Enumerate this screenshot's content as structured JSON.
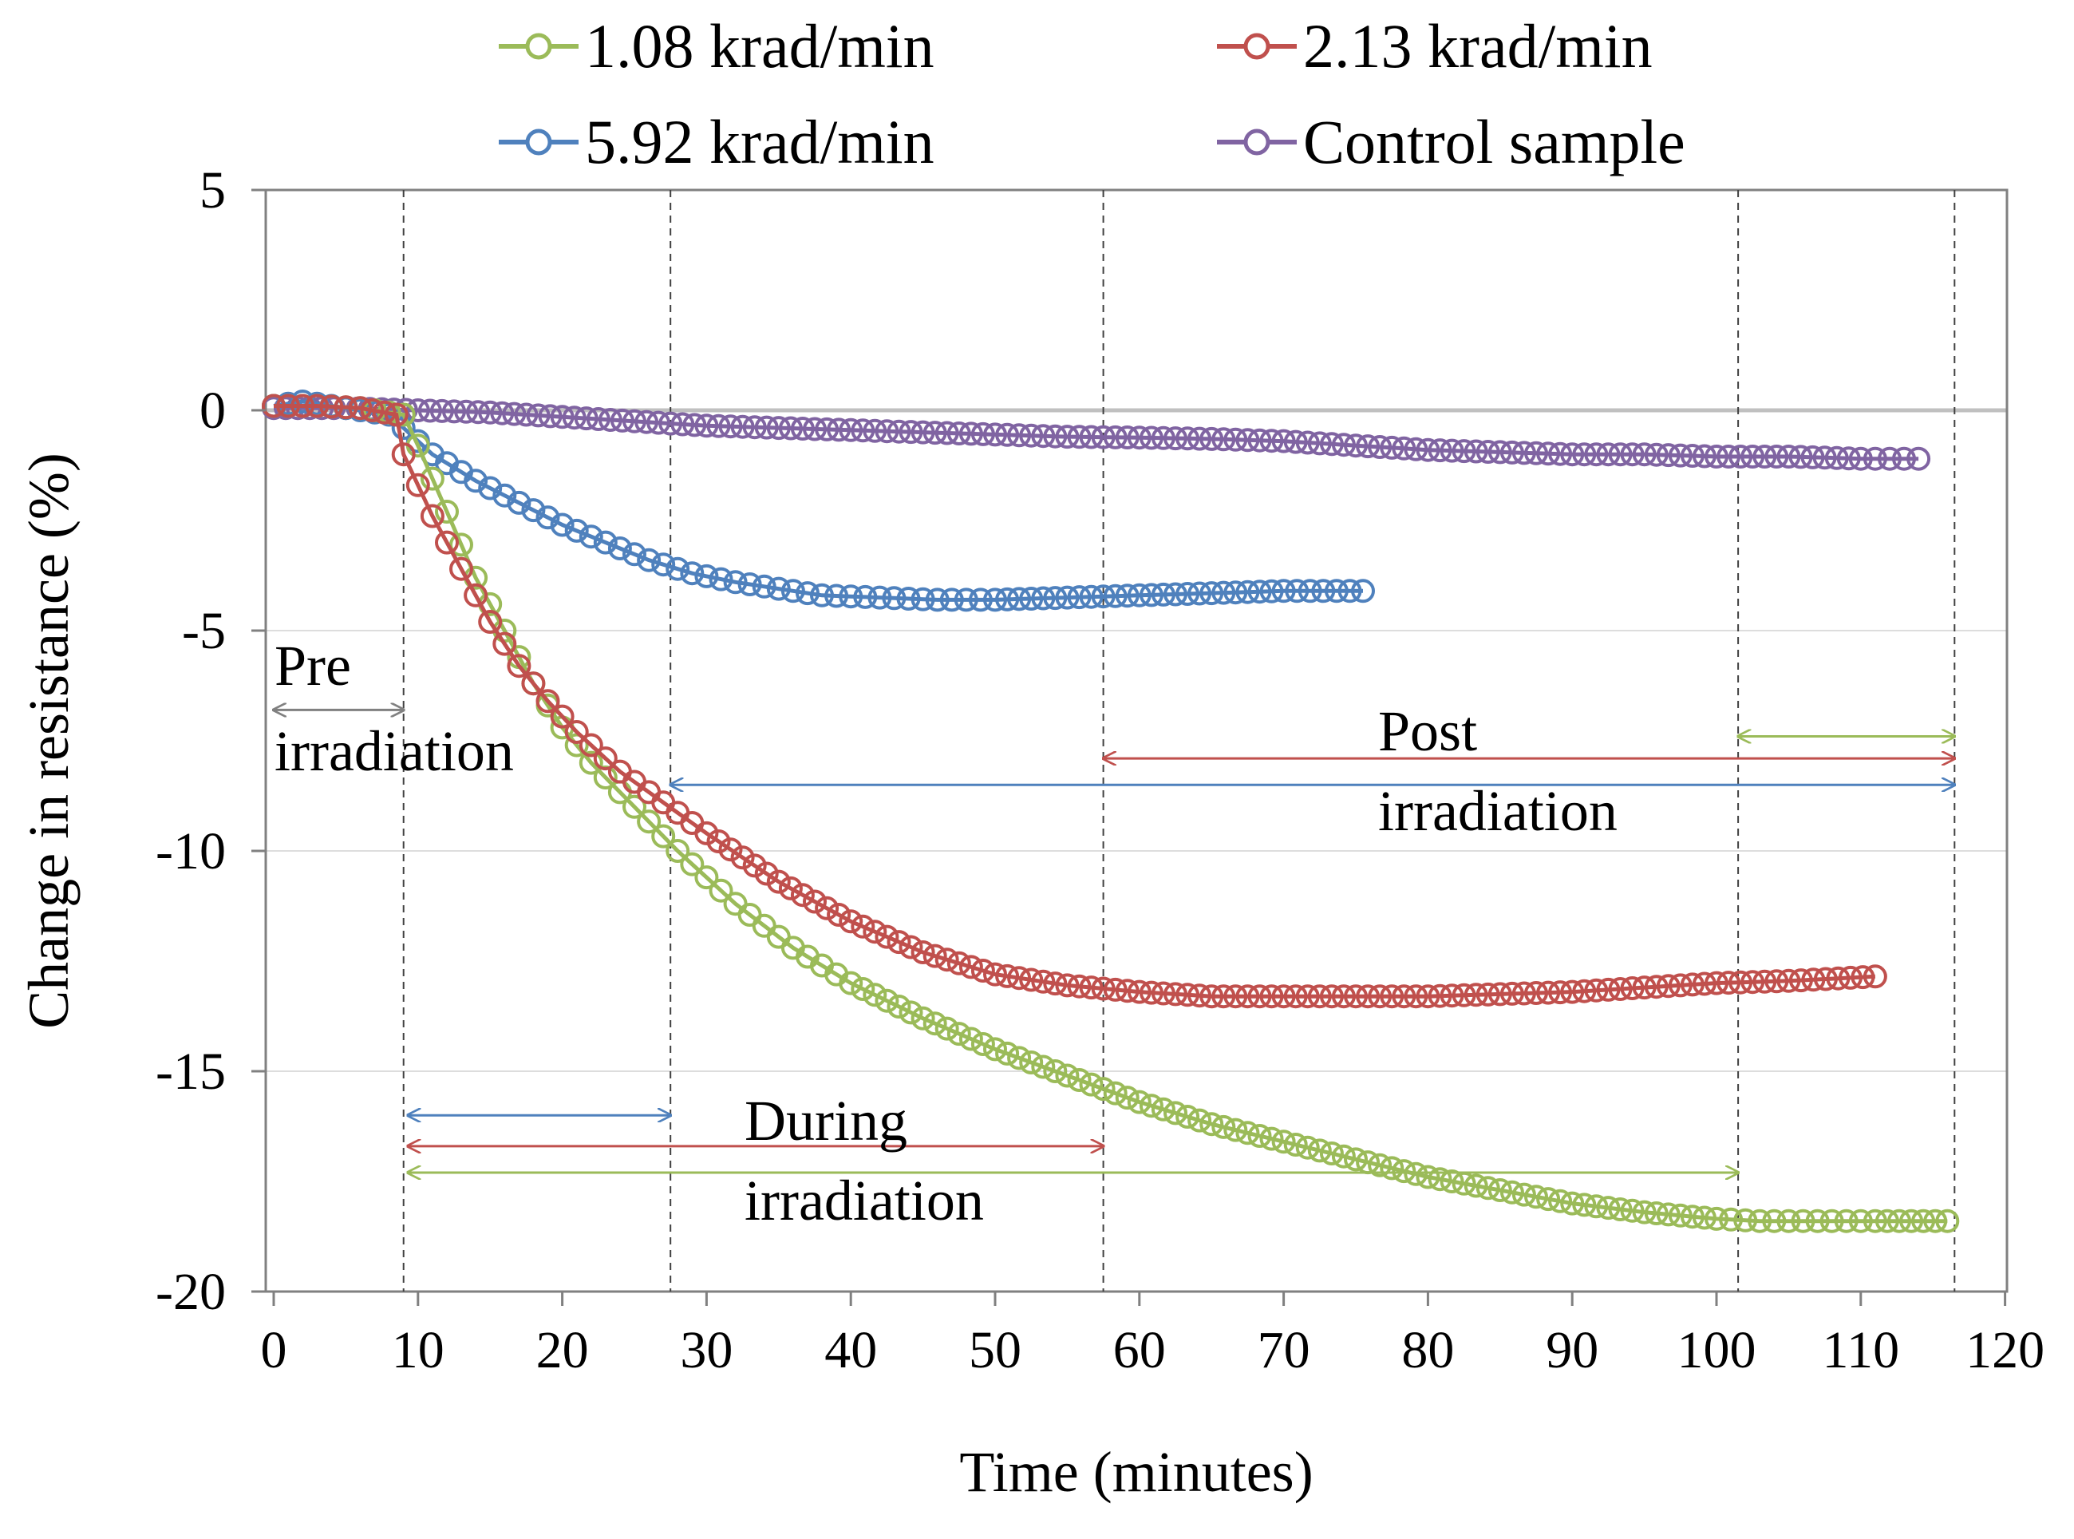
{
  "chart_data": {
    "type": "scatter",
    "xlabel": "Time (minutes)",
    "ylabel": "Change in resistance (%)",
    "xlim": [
      0,
      120
    ],
    "ylim": [
      -20,
      5
    ],
    "xticks": [
      0,
      10,
      20,
      30,
      40,
      50,
      60,
      70,
      80,
      90,
      100,
      110,
      120
    ],
    "yticks": [
      5,
      0,
      -5,
      -10,
      -15,
      -20
    ],
    "xtick_labels": [
      "0",
      "10",
      "20",
      "30",
      "40",
      "50",
      "60",
      "70",
      "80",
      "90",
      "100",
      "110",
      "120"
    ],
    "ytick_labels": [
      "5",
      "0",
      "-5",
      "-10",
      "-15",
      "-20"
    ],
    "grid": true,
    "legend_position": "top",
    "phase_lines_x": [
      9,
      27.5,
      57.5,
      101.5,
      116.5
    ],
    "series": [
      {
        "name": "1.08 krad/min",
        "color": "#9bbb59",
        "points": [
          [
            0,
            0.1
          ],
          [
            3,
            0.1
          ],
          [
            6,
            0.05
          ],
          [
            9,
            -0.1
          ],
          [
            10,
            -0.8
          ],
          [
            12,
            -2.3
          ],
          [
            14,
            -3.8
          ],
          [
            16,
            -5.0
          ],
          [
            18,
            -6.2
          ],
          [
            20,
            -7.2
          ],
          [
            22,
            -8.0
          ],
          [
            25,
            -9.0
          ],
          [
            28,
            -10.0
          ],
          [
            32,
            -11.2
          ],
          [
            36,
            -12.2
          ],
          [
            40,
            -13.0
          ],
          [
            45,
            -13.8
          ],
          [
            50,
            -14.5
          ],
          [
            55,
            -15.1
          ],
          [
            60,
            -15.7
          ],
          [
            65,
            -16.2
          ],
          [
            70,
            -16.6
          ],
          [
            75,
            -17.0
          ],
          [
            80,
            -17.4
          ],
          [
            85,
            -17.7
          ],
          [
            90,
            -18.0
          ],
          [
            95,
            -18.2
          ],
          [
            100,
            -18.35
          ],
          [
            103,
            -18.4
          ],
          [
            107,
            -18.4
          ],
          [
            111,
            -18.4
          ],
          [
            116,
            -18.4
          ]
        ]
      },
      {
        "name": "2.13 krad/min",
        "color": "#c0504d",
        "points": [
          [
            0,
            0.1
          ],
          [
            3,
            0.1
          ],
          [
            6,
            0.05
          ],
          [
            8.5,
            -0.1
          ],
          [
            9,
            -1.0
          ],
          [
            11,
            -2.4
          ],
          [
            13,
            -3.6
          ],
          [
            15,
            -4.8
          ],
          [
            17,
            -5.8
          ],
          [
            19,
            -6.6
          ],
          [
            21,
            -7.3
          ],
          [
            24,
            -8.2
          ],
          [
            27,
            -8.9
          ],
          [
            30,
            -9.6
          ],
          [
            35,
            -10.7
          ],
          [
            40,
            -11.6
          ],
          [
            45,
            -12.3
          ],
          [
            50,
            -12.8
          ],
          [
            55,
            -13.05
          ],
          [
            60,
            -13.2
          ],
          [
            65,
            -13.3
          ],
          [
            70,
            -13.3
          ],
          [
            75,
            -13.3
          ],
          [
            80,
            -13.3
          ],
          [
            85,
            -13.25
          ],
          [
            90,
            -13.2
          ],
          [
            95,
            -13.1
          ],
          [
            100,
            -13.0
          ],
          [
            105,
            -12.95
          ],
          [
            111,
            -12.85
          ]
        ]
      },
      {
        "name": "5.92 krad/min",
        "color": "#4f81bd",
        "points": [
          [
            0,
            0.1
          ],
          [
            2,
            0.2
          ],
          [
            5,
            0.05
          ],
          [
            8,
            -0.1
          ],
          [
            9,
            -0.4
          ],
          [
            11,
            -1.0
          ],
          [
            14,
            -1.6
          ],
          [
            17,
            -2.1
          ],
          [
            20,
            -2.6
          ],
          [
            23,
            -3.0
          ],
          [
            26,
            -3.4
          ],
          [
            29,
            -3.7
          ],
          [
            32,
            -3.9
          ],
          [
            35,
            -4.05
          ],
          [
            38,
            -4.2
          ],
          [
            42,
            -4.25
          ],
          [
            46,
            -4.3
          ],
          [
            50,
            -4.3
          ],
          [
            55,
            -4.25
          ],
          [
            60,
            -4.2
          ],
          [
            65,
            -4.15
          ],
          [
            70,
            -4.1
          ],
          [
            75.5,
            -4.1
          ]
        ]
      },
      {
        "name": "Control sample",
        "color": "#8064a2",
        "points": [
          [
            0,
            0.05
          ],
          [
            5,
            0.05
          ],
          [
            10,
            0.0
          ],
          [
            15,
            -0.05
          ],
          [
            20,
            -0.15
          ],
          [
            25,
            -0.25
          ],
          [
            30,
            -0.35
          ],
          [
            35,
            -0.4
          ],
          [
            40,
            -0.45
          ],
          [
            45,
            -0.5
          ],
          [
            50,
            -0.55
          ],
          [
            55,
            -0.6
          ],
          [
            60,
            -0.62
          ],
          [
            65,
            -0.65
          ],
          [
            70,
            -0.7
          ],
          [
            75,
            -0.8
          ],
          [
            80,
            -0.9
          ],
          [
            85,
            -0.95
          ],
          [
            90,
            -1.0
          ],
          [
            95,
            -1.0
          ],
          [
            100,
            -1.05
          ],
          [
            105,
            -1.05
          ],
          [
            110,
            -1.1
          ],
          [
            114,
            -1.1
          ]
        ]
      }
    ],
    "phase_arrows": [
      {
        "label_group": "Pre irradiation",
        "from": 0,
        "to": 9,
        "y": -6.8,
        "color": "#808080"
      },
      {
        "label_group": "During irradiation",
        "from": 9.3,
        "to": 27.5,
        "y": -16.0,
        "color": "#4f81bd"
      },
      {
        "label_group": "During irradiation",
        "from": 9.3,
        "to": 57.5,
        "y": -16.7,
        "color": "#c0504d"
      },
      {
        "label_group": "During irradiation",
        "from": 9.3,
        "to": 101.5,
        "y": -17.3,
        "color": "#9bbb59"
      },
      {
        "label_group": "Post irradiation",
        "from": 101.5,
        "to": 116.5,
        "y": -7.4,
        "color": "#9bbb59"
      },
      {
        "label_group": "Post irradiation",
        "from": 57.5,
        "to": 116.5,
        "y": -7.9,
        "color": "#c0504d"
      },
      {
        "label_group": "Post irradiation",
        "from": 27.5,
        "to": 116.5,
        "y": -8.5,
        "color": "#4f81bd"
      }
    ],
    "annotations": {
      "pre_line1": "Pre",
      "pre_line2": "irradiation",
      "during_line1": "During",
      "during_line2": "irradiation",
      "post_line1": "Post",
      "post_line2": "irradiation"
    }
  }
}
